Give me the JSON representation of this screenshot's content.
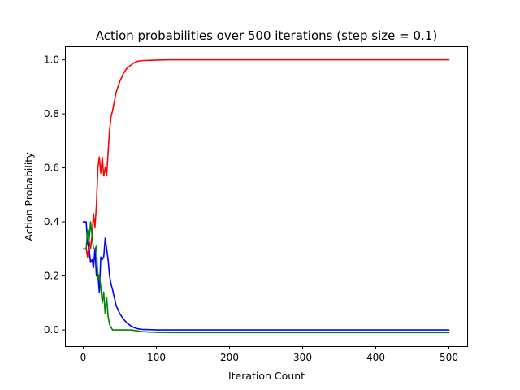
{
  "chart_data": {
    "type": "line",
    "title": "Action probabilities over 500 iterations (step size = 0.1)",
    "xlabel": "Iteration Count",
    "ylabel": "Action Probability",
    "xlim": [
      -25,
      525
    ],
    "ylim": [
      -0.06,
      1.05
    ],
    "xticks": [
      0,
      100,
      200,
      300,
      400,
      500
    ],
    "yticks": [
      0.0,
      0.2,
      0.4,
      0.6,
      0.8,
      1.0
    ],
    "xtick_labels": [
      "0",
      "100",
      "200",
      "300",
      "400",
      "500"
    ],
    "ytick_labels": [
      "0.0",
      "0.2",
      "0.4",
      "0.6",
      "0.8",
      "1.0"
    ],
    "grid": false,
    "legend": "none",
    "series": [
      {
        "color": "#ff0000",
        "x": [
          0,
          2,
          4,
          6,
          8,
          10,
          12,
          14,
          16,
          18,
          20,
          22,
          24,
          26,
          28,
          30,
          32,
          34,
          36,
          38,
          40,
          45,
          50,
          55,
          60,
          65,
          70,
          75,
          80,
          90,
          100,
          120,
          150,
          200,
          300,
          400,
          500
        ],
        "y": [
          0.3,
          0.3,
          0.3,
          0.27,
          0.33,
          0.3,
          0.35,
          0.43,
          0.38,
          0.46,
          0.6,
          0.64,
          0.58,
          0.64,
          0.57,
          0.6,
          0.57,
          0.66,
          0.74,
          0.79,
          0.81,
          0.88,
          0.92,
          0.95,
          0.97,
          0.98,
          0.99,
          0.995,
          0.997,
          0.998,
          0.999,
          1.0,
          1.0,
          1.0,
          1.0,
          1.0,
          1.0
        ]
      },
      {
        "color": "#0000ff",
        "x": [
          0,
          2,
          4,
          6,
          8,
          10,
          12,
          14,
          16,
          18,
          20,
          22,
          24,
          26,
          28,
          30,
          32,
          34,
          36,
          38,
          40,
          45,
          50,
          55,
          60,
          65,
          70,
          75,
          80,
          90,
          100,
          120,
          150,
          200,
          300,
          400,
          500
        ],
        "y": [
          0.4,
          0.4,
          0.4,
          0.32,
          0.3,
          0.25,
          0.26,
          0.23,
          0.3,
          0.2,
          0.21,
          0.14,
          0.27,
          0.26,
          0.27,
          0.34,
          0.3,
          0.26,
          0.2,
          0.17,
          0.15,
          0.09,
          0.06,
          0.04,
          0.025,
          0.015,
          0.008,
          0.004,
          0.002,
          0.001,
          0.0,
          0.0,
          0.0,
          0.0,
          0.0,
          0.0,
          0.0
        ]
      },
      {
        "color": "#008000",
        "x": [
          0,
          2,
          4,
          6,
          8,
          10,
          12,
          14,
          16,
          18,
          20,
          22,
          24,
          26,
          28,
          30,
          32,
          34,
          36,
          38,
          40,
          45,
          50,
          55,
          60,
          65,
          70,
          75,
          80,
          90,
          100,
          120,
          150,
          200,
          300,
          400,
          500
        ],
        "y": [
          0.3,
          0.3,
          0.3,
          0.37,
          0.33,
          0.4,
          0.35,
          0.3,
          0.3,
          0.31,
          0.19,
          0.2,
          0.16,
          0.1,
          0.14,
          0.06,
          0.12,
          0.05,
          0.02,
          0.01,
          0.0,
          0.0,
          0.0,
          0.0,
          0.0,
          0.0,
          -0.002,
          -0.004,
          -0.006,
          -0.008,
          -0.009,
          -0.01,
          -0.01,
          -0.01,
          -0.01,
          -0.01,
          -0.01
        ]
      }
    ]
  }
}
